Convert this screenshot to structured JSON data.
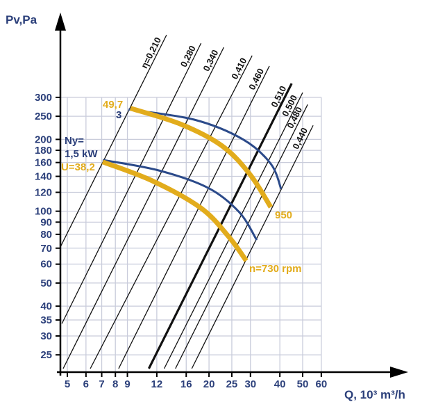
{
  "chart_data": {
    "type": "line",
    "title": "",
    "xlabel": "Q, 10³ m³/h",
    "ylabel": "Pv,Pa",
    "x_scale": "log",
    "y_scale": "log",
    "xlim": [
      5,
      60
    ],
    "ylim": [
      25,
      300
    ],
    "grid": true,
    "x_ticks": [
      5,
      6,
      7,
      8,
      9,
      12,
      16,
      20,
      25,
      30,
      40,
      50,
      60
    ],
    "y_ticks": [
      300,
      250,
      200,
      180,
      160,
      140,
      120,
      100,
      90,
      80,
      70,
      60,
      50,
      40,
      35,
      30,
      25
    ],
    "efficiency_lines": [
      {
        "label": "η=0,210",
        "points": [
          [
            4.67,
            70.8
          ],
          [
            13.2,
            548
          ]
        ]
      },
      {
        "label": "0,280",
        "points": [
          [
            4.74,
            33.8
          ],
          [
            18.5,
            506
          ]
        ]
      },
      {
        "label": "0,340",
        "points": [
          [
            4.8,
            21.9
          ],
          [
            23.1,
            486
          ]
        ]
      },
      {
        "label": "0,410",
        "points": [
          [
            6.26,
            21.9
          ],
          [
            30.5,
            449
          ]
        ]
      },
      {
        "label": "0,460",
        "points": [
          [
            8.26,
            21.9
          ],
          [
            36.1,
            406
          ]
        ]
      },
      {
        "label": "0,510",
        "points": [
          [
            11.1,
            21.9
          ],
          [
            44.9,
            343
          ]
        ],
        "bold": true
      },
      {
        "label": "0,500",
        "points": [
          [
            12.9,
            21.9
          ],
          [
            50,
            314
          ]
        ]
      },
      {
        "label": "0,480",
        "points": [
          [
            14.4,
            21.9
          ],
          [
            52.5,
            280
          ]
        ]
      },
      {
        "label": "0,440",
        "points": [
          [
            16.9,
            21.9
          ],
          [
            55.4,
            229
          ]
        ]
      }
    ],
    "series": [
      {
        "name": "power 3 kW",
        "color": "#2b4a8a",
        "width": "thin",
        "points": [
          [
            9.1,
            267
          ],
          [
            17.3,
            242
          ],
          [
            27.9,
            200
          ],
          [
            36.6,
            158
          ],
          [
            40.5,
            124
          ]
        ]
      },
      {
        "name": "n=950 rpm",
        "color": "#e2ac1c",
        "width": "thick",
        "points": [
          [
            9.27,
            270
          ],
          [
            15.1,
            232
          ],
          [
            22.7,
            188
          ],
          [
            29.8,
            143
          ],
          [
            36.6,
            104
          ]
        ]
      },
      {
        "name": "power 1,5 kW",
        "color": "#2b4a8a",
        "width": "thin",
        "points": [
          [
            7.07,
            164
          ],
          [
            12.3,
            148
          ],
          [
            19.9,
            125
          ],
          [
            26.9,
            99
          ],
          [
            31.9,
            75.7
          ]
        ]
      },
      {
        "name": "n=730 rpm",
        "color": "#e2ac1c",
        "width": "thick",
        "points": [
          [
            7.07,
            161
          ],
          [
            11.5,
            134
          ],
          [
            18.5,
            103
          ],
          [
            24.3,
            78
          ],
          [
            28.8,
            62
          ]
        ]
      }
    ],
    "annotations": {
      "u_high": "49,7",
      "ny_high": "3",
      "ny_label": "Ny=",
      "ny_low": "1,5 kW",
      "u_low": "U=38,2",
      "n_high": "950",
      "n_low": "n=730 rpm"
    }
  },
  "colors": {
    "axis_text": "#2b3f7a",
    "navy": "#2b4a8a",
    "yellow": "#e2ac1c",
    "grid": "#c9ccdb"
  }
}
